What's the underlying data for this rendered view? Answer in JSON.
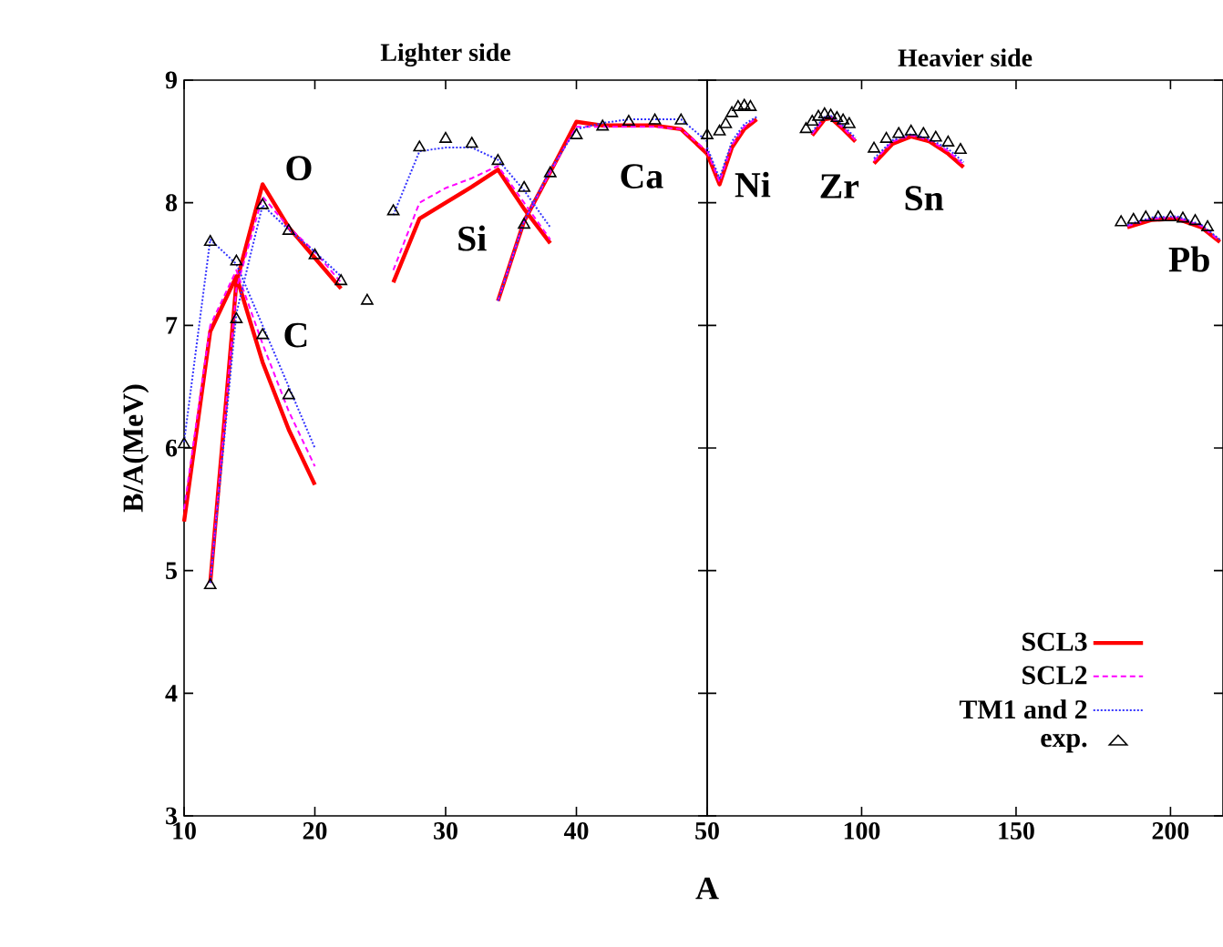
{
  "chart_data": [
    {
      "type": "line",
      "title": "Lighter side",
      "xlabel": "A",
      "ylabel": "B/A(MeV)",
      "xlim": [
        10,
        50
      ],
      "ylim": [
        3,
        9
      ],
      "xticks": [
        10,
        20,
        30,
        40,
        {
          "value": 50,
          "label": null
        }
      ],
      "yticks": [
        3,
        4,
        5,
        6,
        7,
        8,
        9
      ],
      "grid": false,
      "annotations": [
        {
          "text": "O",
          "x": 16,
          "y": 8.15
        },
        {
          "text": "C",
          "x": 16,
          "y": 6.92
        },
        {
          "text": "Si",
          "x": 32,
          "y": 8.13
        },
        {
          "text": "Ca",
          "x": 44,
          "y": 8.63
        }
      ],
      "series": [
        {
          "type": "line",
          "color": "#ff0000",
          "line_style": "solid",
          "x": [
            10,
            12,
            14,
            16,
            18,
            20
          ],
          "values": [
            5.4,
            6.95,
            7.4,
            6.7,
            6.15,
            5.7
          ]
        },
        {
          "type": "line",
          "color": "#ff0000",
          "line_style": "solid",
          "x": [
            12,
            14,
            16,
            18,
            20,
            22
          ],
          "values": [
            4.9,
            7.35,
            8.15,
            7.8,
            7.55,
            7.3
          ]
        },
        {
          "type": "line",
          "color": "#ff0000",
          "line_style": "solid",
          "x": [
            26,
            28,
            30,
            32,
            34,
            36,
            38
          ],
          "values": [
            7.35,
            7.87,
            8.0,
            8.13,
            8.27,
            7.95,
            7.67
          ]
        },
        {
          "type": "line",
          "color": "#ff0000",
          "line_style": "solid",
          "x": [
            34,
            36,
            38,
            40,
            42,
            44,
            46,
            48,
            50
          ],
          "values": [
            7.2,
            7.85,
            8.25,
            8.66,
            8.63,
            8.63,
            8.63,
            8.6,
            8.4
          ]
        },
        {
          "type": "line",
          "color": "#ff00ff",
          "line_style": "dashed",
          "x": [
            10,
            12,
            14,
            16,
            18,
            20
          ],
          "values": [
            5.5,
            7.0,
            7.45,
            6.85,
            6.3,
            5.85
          ]
        },
        {
          "type": "line",
          "color": "#ff00ff",
          "line_style": "dashed",
          "x": [
            12,
            14,
            16,
            18,
            20,
            22
          ],
          "values": [
            4.9,
            7.3,
            8.05,
            7.8,
            7.6,
            7.35
          ]
        },
        {
          "type": "line",
          "color": "#ff00ff",
          "line_style": "dashed",
          "x": [
            26,
            28,
            30,
            32,
            34,
            36,
            38
          ],
          "values": [
            7.45,
            8.0,
            8.12,
            8.2,
            8.3,
            8.0,
            7.7
          ]
        },
        {
          "type": "line",
          "color": "#ff00ff",
          "line_style": "dashed",
          "x": [
            34,
            36,
            38,
            40,
            42,
            44,
            46,
            48,
            50
          ],
          "values": [
            7.2,
            7.85,
            8.25,
            8.62,
            8.62,
            8.62,
            8.62,
            8.6,
            8.42
          ]
        },
        {
          "type": "line",
          "color": "#3333ff",
          "line_style": "dotted",
          "x": [
            10,
            12,
            14,
            16,
            18,
            20
          ],
          "values": [
            6.05,
            7.7,
            7.5,
            7.0,
            6.5,
            6.0
          ]
        },
        {
          "type": "line",
          "color": "#3333ff",
          "line_style": "dotted",
          "x": [
            12,
            14,
            16,
            18,
            20,
            22
          ],
          "values": [
            4.9,
            7.1,
            7.98,
            7.78,
            7.6,
            7.4
          ]
        },
        {
          "type": "line",
          "color": "#3333ff",
          "line_style": "dotted",
          "x": [
            26,
            28,
            30,
            32,
            34,
            36,
            38
          ],
          "values": [
            7.9,
            8.42,
            8.45,
            8.45,
            8.35,
            8.1,
            7.8
          ]
        },
        {
          "type": "line",
          "color": "#3333ff",
          "line_style": "dotted",
          "x": [
            34,
            36,
            38,
            40,
            42,
            44,
            46,
            48,
            50
          ],
          "values": [
            7.2,
            7.85,
            8.27,
            8.6,
            8.65,
            8.68,
            8.68,
            8.68,
            8.5
          ]
        },
        {
          "type": "scatter",
          "color": "#000000",
          "marker": "triangle",
          "x": [
            10,
            12,
            14,
            16,
            18,
            12,
            14,
            16,
            18,
            20,
            22,
            24,
            26,
            28,
            30,
            32,
            34,
            36,
            36,
            38,
            40,
            42,
            44,
            46,
            48,
            50
          ],
          "values": [
            6.03,
            7.68,
            7.52,
            6.92,
            6.43,
            4.88,
            7.05,
            7.98,
            7.77,
            7.57,
            7.36,
            7.2,
            7.93,
            8.45,
            8.52,
            8.48,
            8.34,
            8.12,
            7.82,
            8.24,
            8.55,
            8.62,
            8.66,
            8.67,
            8.67,
            8.55
          ]
        }
      ]
    },
    {
      "type": "line",
      "title": "Heavier side",
      "xlim": [
        50,
        217
      ],
      "ylim": [
        3,
        9
      ],
      "xticks": [
        50,
        100,
        150,
        200
      ],
      "yticks": [
        {
          "value": 3,
          "label": null
        },
        {
          "value": 4,
          "label": null
        },
        {
          "value": 5,
          "label": null
        },
        {
          "value": 6,
          "label": null
        },
        {
          "value": 7,
          "label": null
        },
        {
          "value": 8,
          "label": null
        },
        {
          "value": 9,
          "label": null
        }
      ],
      "tick_labels": "x",
      "grid": false,
      "legend": "bottom right",
      "annotations": [
        {
          "text": "Ni",
          "x": 54,
          "y": 8.15
        },
        {
          "text": "Zr",
          "x": 88,
          "y": 8.68
        },
        {
          "text": "Sn",
          "x": 116,
          "y": 8.54
        },
        {
          "text": "Pb",
          "x": 202,
          "y": 7.87
        }
      ],
      "series": [
        {
          "type": "line",
          "name": "SCL3",
          "color": "#ff0000",
          "line_style": "solid",
          "x": [
            50,
            54,
            58,
            62,
            66
          ],
          "values": [
            8.4,
            8.15,
            8.45,
            8.6,
            8.68
          ]
        },
        {
          "type": "line",
          "color": "#ff0000",
          "line_style": "solid",
          "x": [
            84,
            88,
            90,
            94,
            98
          ],
          "values": [
            8.55,
            8.68,
            8.69,
            8.6,
            8.5
          ]
        },
        {
          "type": "line",
          "color": "#ff0000",
          "line_style": "solid",
          "x": [
            104,
            110,
            116,
            122,
            128,
            133
          ],
          "values": [
            8.32,
            8.48,
            8.54,
            8.5,
            8.4,
            8.29
          ]
        },
        {
          "type": "line",
          "color": "#ff0000",
          "line_style": "solid",
          "x": [
            186,
            194,
            202,
            210,
            216
          ],
          "values": [
            7.8,
            7.86,
            7.87,
            7.8,
            7.68
          ]
        },
        {
          "type": "line",
          "name": "SCL2",
          "color": "#ff00ff",
          "line_style": "dashed",
          "x": [
            50,
            54,
            58,
            62,
            66
          ],
          "values": [
            8.42,
            8.17,
            8.47,
            8.62,
            8.69
          ]
        },
        {
          "type": "line",
          "color": "#ff00ff",
          "line_style": "dashed",
          "x": [
            84,
            88,
            90,
            94,
            98
          ],
          "values": [
            8.56,
            8.69,
            8.7,
            8.61,
            8.51
          ]
        },
        {
          "type": "line",
          "color": "#ff00ff",
          "line_style": "dashed",
          "x": [
            104,
            110,
            116,
            122,
            128,
            133
          ],
          "values": [
            8.34,
            8.5,
            8.55,
            8.51,
            8.42,
            8.31
          ]
        },
        {
          "type": "line",
          "color": "#ff00ff",
          "line_style": "dashed",
          "x": [
            186,
            194,
            202,
            210,
            216
          ],
          "values": [
            7.81,
            7.87,
            7.88,
            7.81,
            7.69
          ]
        },
        {
          "type": "line",
          "name": "TM1 and 2",
          "color": "#3333ff",
          "line_style": "dotted",
          "x": [
            50,
            54,
            58,
            62,
            66
          ],
          "values": [
            8.45,
            8.2,
            8.5,
            8.64,
            8.7
          ]
        },
        {
          "type": "line",
          "color": "#3333ff",
          "line_style": "dotted",
          "x": [
            84,
            88,
            90,
            94,
            98
          ],
          "values": [
            8.58,
            8.7,
            8.71,
            8.63,
            8.53
          ]
        },
        {
          "type": "line",
          "color": "#3333ff",
          "line_style": "dotted",
          "x": [
            104,
            110,
            116,
            122,
            128,
            133
          ],
          "values": [
            8.36,
            8.51,
            8.56,
            8.52,
            8.44,
            8.33
          ]
        },
        {
          "type": "line",
          "color": "#3333ff",
          "line_style": "dotted",
          "x": [
            186,
            194,
            202,
            210,
            216
          ],
          "values": [
            7.82,
            7.88,
            7.89,
            7.82,
            7.7
          ]
        },
        {
          "type": "scatter",
          "name": "exp.",
          "color": "#000000",
          "marker": "triangle",
          "x": [
            54,
            56,
            58,
            60,
            62,
            64,
            82,
            84,
            86,
            88,
            90,
            92,
            94,
            96,
            104,
            108,
            112,
            116,
            120,
            124,
            128,
            132,
            184,
            188,
            192,
            196,
            200,
            204,
            208,
            212
          ],
          "values": [
            8.58,
            8.64,
            8.73,
            8.78,
            8.79,
            8.78,
            8.6,
            8.66,
            8.7,
            8.72,
            8.71,
            8.69,
            8.67,
            8.64,
            8.44,
            8.52,
            8.56,
            8.58,
            8.56,
            8.53,
            8.49,
            8.43,
            7.84,
            7.86,
            7.88,
            7.88,
            7.88,
            7.87,
            7.85,
            7.8
          ]
        }
      ]
    }
  ]
}
